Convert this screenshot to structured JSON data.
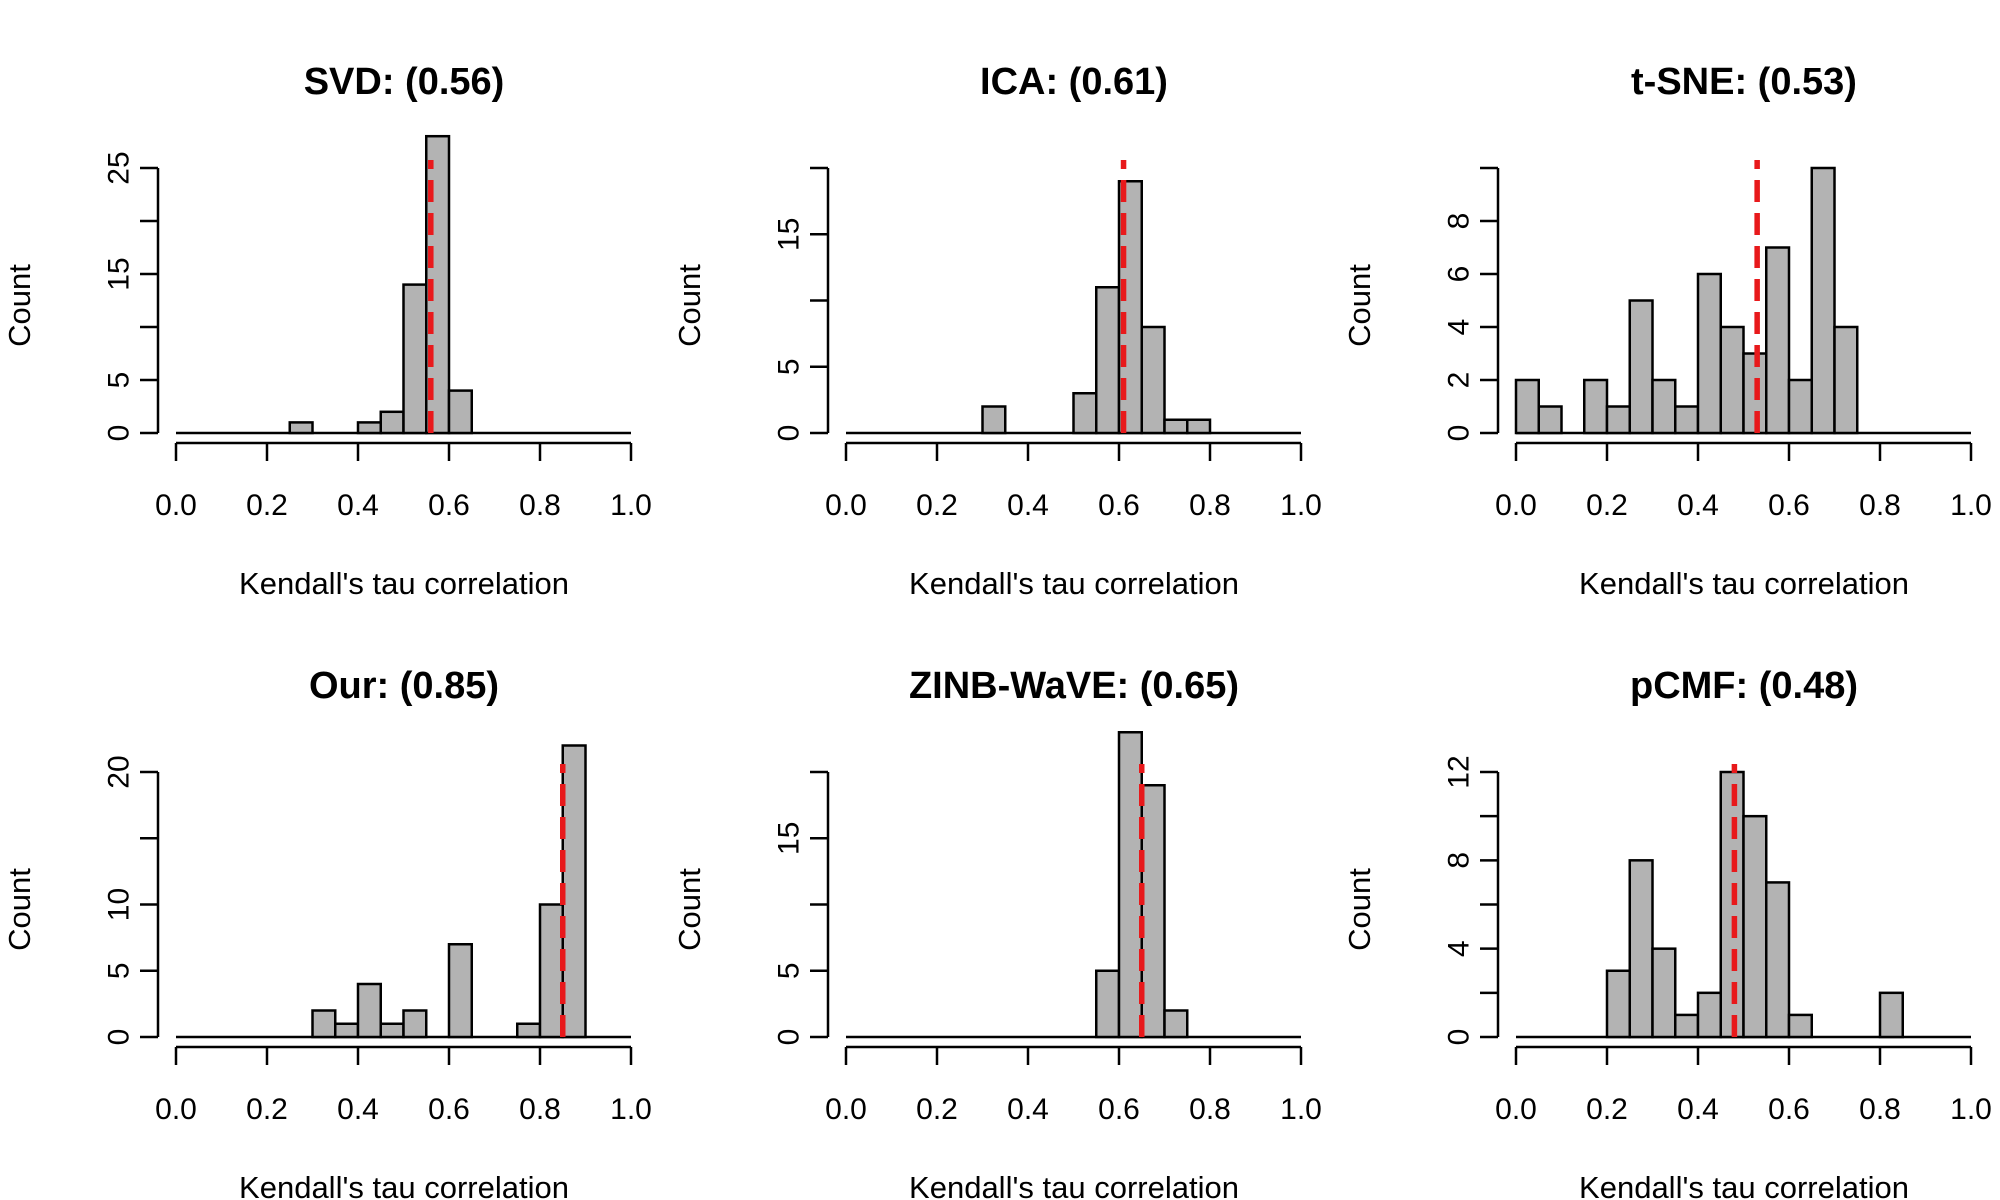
{
  "chart_data": [
    {
      "type": "bar",
      "title": "SVD: (0.56)",
      "xlabel": "Kendall's tau correlation",
      "ylabel": "Count",
      "bin_width": 0.05,
      "x": [
        0.0,
        0.05,
        0.1,
        0.15,
        0.2,
        0.25,
        0.3,
        0.35,
        0.4,
        0.45,
        0.5,
        0.55,
        0.6,
        0.65,
        0.7,
        0.75,
        0.8,
        0.85,
        0.9,
        0.95
      ],
      "values": [
        0,
        0,
        0,
        0,
        0,
        1,
        0,
        0,
        1,
        2,
        14,
        28,
        4,
        0,
        0,
        0,
        0,
        0,
        0,
        0
      ],
      "mean": 0.56,
      "xlim": [
        0,
        1
      ],
      "ylim": [
        0,
        25
      ],
      "xticks": [
        "0.0",
        "0.2",
        "0.4",
        "0.6",
        "0.8",
        "1.0"
      ],
      "yticks": [
        "0",
        "5",
        "15",
        "25"
      ],
      "ytick_values": [
        0,
        5,
        15,
        25
      ],
      "yaxis_ticks": [
        0,
        5,
        10,
        15,
        20,
        25
      ],
      "mean_line_color": "#e8191b",
      "bar_fill": "#b3b3b3",
      "grid": false
    },
    {
      "type": "bar",
      "title": "ICA: (0.61)",
      "xlabel": "Kendall's tau correlation",
      "ylabel": "Count",
      "bin_width": 0.05,
      "x": [
        0.0,
        0.05,
        0.1,
        0.15,
        0.2,
        0.25,
        0.3,
        0.35,
        0.4,
        0.45,
        0.5,
        0.55,
        0.6,
        0.65,
        0.7,
        0.75,
        0.8,
        0.85,
        0.9,
        0.95
      ],
      "values": [
        0,
        0,
        0,
        0,
        0,
        0,
        2,
        0,
        0,
        0,
        3,
        11,
        19,
        8,
        1,
        1,
        0,
        0,
        0,
        0
      ],
      "mean": 0.61,
      "xlim": [
        0,
        1
      ],
      "ylim": [
        0,
        20
      ],
      "xticks": [
        "0.0",
        "0.2",
        "0.4",
        "0.6",
        "0.8",
        "1.0"
      ],
      "yticks": [
        "0",
        "5",
        "15"
      ],
      "ytick_values": [
        0,
        5,
        15
      ],
      "yaxis_ticks": [
        0,
        5,
        10,
        15,
        20
      ],
      "mean_line_color": "#e8191b",
      "bar_fill": "#b3b3b3",
      "grid": false
    },
    {
      "type": "bar",
      "title": "t-SNE: (0.53)",
      "xlabel": "Kendall's tau correlation",
      "ylabel": "Count",
      "bin_width": 0.05,
      "x": [
        0.0,
        0.05,
        0.1,
        0.15,
        0.2,
        0.25,
        0.3,
        0.35,
        0.4,
        0.45,
        0.5,
        0.55,
        0.6,
        0.65,
        0.7,
        0.75,
        0.8,
        0.85,
        0.9,
        0.95
      ],
      "values": [
        2,
        1,
        0,
        2,
        1,
        5,
        2,
        1,
        6,
        4,
        3,
        7,
        2,
        10,
        4,
        0,
        0,
        0,
        0,
        0
      ],
      "mean": 0.53,
      "xlim": [
        0,
        1
      ],
      "ylim": [
        0,
        10
      ],
      "xticks": [
        "0.0",
        "0.2",
        "0.4",
        "0.6",
        "0.8",
        "1.0"
      ],
      "yticks": [
        "0",
        "2",
        "4",
        "6",
        "8"
      ],
      "ytick_values": [
        0,
        2,
        4,
        6,
        8
      ],
      "yaxis_ticks": [
        0,
        2,
        4,
        6,
        8,
        10
      ],
      "mean_line_color": "#e8191b",
      "bar_fill": "#b3b3b3",
      "grid": false
    },
    {
      "type": "bar",
      "title": "Our: (0.85)",
      "xlabel": "Kendall's tau correlation",
      "ylabel": "Count",
      "bin_width": 0.05,
      "x": [
        0.0,
        0.05,
        0.1,
        0.15,
        0.2,
        0.25,
        0.3,
        0.35,
        0.4,
        0.45,
        0.5,
        0.55,
        0.6,
        0.65,
        0.7,
        0.75,
        0.8,
        0.85,
        0.9,
        0.95
      ],
      "values": [
        0,
        0,
        0,
        0,
        0,
        0,
        2,
        1,
        4,
        1,
        2,
        0,
        7,
        0,
        0,
        1,
        10,
        22,
        0,
        0
      ],
      "mean": 0.85,
      "xlim": [
        0,
        1
      ],
      "ylim": [
        0,
        20
      ],
      "xticks": [
        "0.0",
        "0.2",
        "0.4",
        "0.6",
        "0.8",
        "1.0"
      ],
      "yticks": [
        "0",
        "5",
        "10",
        "20"
      ],
      "ytick_values": [
        0,
        5,
        10,
        20
      ],
      "yaxis_ticks": [
        0,
        5,
        10,
        15,
        20
      ],
      "mean_line_color": "#e8191b",
      "bar_fill": "#b3b3b3",
      "grid": false
    },
    {
      "type": "bar",
      "title": "ZINB-WaVE: (0.65)",
      "xlabel": "Kendall's tau correlation",
      "ylabel": "Count",
      "bin_width": 0.05,
      "x": [
        0.0,
        0.05,
        0.1,
        0.15,
        0.2,
        0.25,
        0.3,
        0.35,
        0.4,
        0.45,
        0.5,
        0.55,
        0.6,
        0.65,
        0.7,
        0.75,
        0.8,
        0.85,
        0.9,
        0.95
      ],
      "values": [
        0,
        0,
        0,
        0,
        0,
        0,
        0,
        0,
        0,
        0,
        0,
        5,
        23,
        19,
        2,
        0,
        0,
        0,
        0,
        0
      ],
      "mean": 0.65,
      "xlim": [
        0,
        1
      ],
      "ylim": [
        0,
        20
      ],
      "xticks": [
        "0.0",
        "0.2",
        "0.4",
        "0.6",
        "0.8",
        "1.0"
      ],
      "yticks": [
        "0",
        "5",
        "15"
      ],
      "ytick_values": [
        0,
        5,
        15
      ],
      "yaxis_ticks": [
        0,
        5,
        10,
        15,
        20
      ],
      "mean_line_color": "#e8191b",
      "bar_fill": "#b3b3b3",
      "grid": false
    },
    {
      "type": "bar",
      "title": "pCMF: (0.48)",
      "xlabel": "Kendall's tau correlation",
      "ylabel": "Count",
      "bin_width": 0.05,
      "x": [
        0.0,
        0.05,
        0.1,
        0.15,
        0.2,
        0.25,
        0.3,
        0.35,
        0.4,
        0.45,
        0.5,
        0.55,
        0.6,
        0.65,
        0.7,
        0.75,
        0.8,
        0.85,
        0.9,
        0.95
      ],
      "values": [
        0,
        0,
        0,
        0,
        3,
        8,
        4,
        1,
        2,
        12,
        10,
        7,
        1,
        0,
        0,
        0,
        2,
        0,
        0,
        0
      ],
      "mean": 0.48,
      "xlim": [
        0,
        1
      ],
      "ylim": [
        0,
        12
      ],
      "xticks": [
        "0.0",
        "0.2",
        "0.4",
        "0.6",
        "0.8",
        "1.0"
      ],
      "yticks": [
        "0",
        "4",
        "8",
        "12"
      ],
      "ytick_values": [
        0,
        4,
        8,
        12
      ],
      "yaxis_ticks": [
        0,
        2,
        4,
        6,
        8,
        10,
        12
      ],
      "mean_line_color": "#e8191b",
      "bar_fill": "#b3b3b3",
      "grid": false
    }
  ]
}
